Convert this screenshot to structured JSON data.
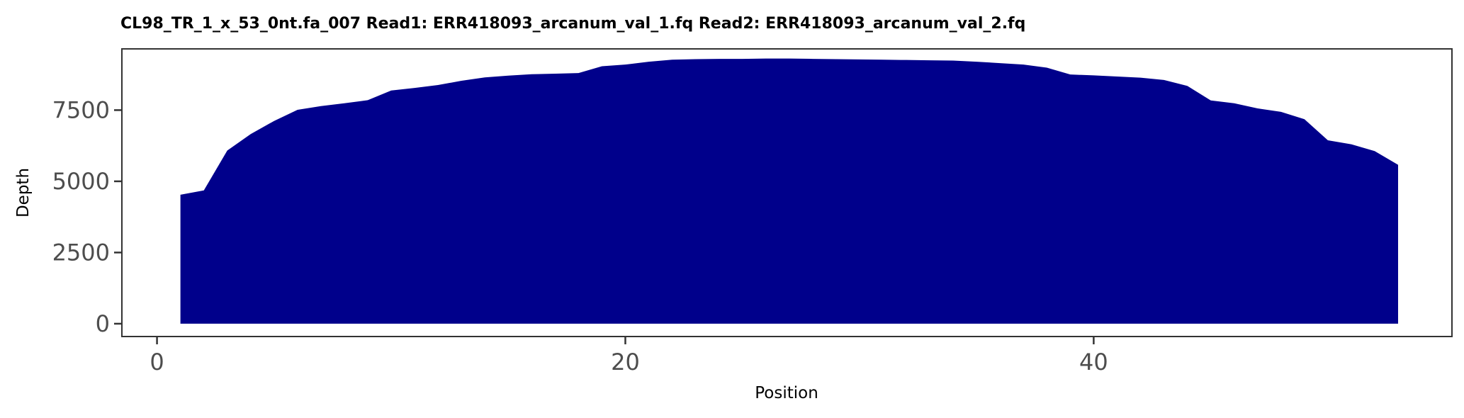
{
  "chart_data": {
    "type": "area",
    "title": "CL98_TR_1_x_53_0nt.fa_007   Read1: ERR418093_arcanum_val_1.fq   Read2: ERR418093_arcanum_val_2.fq",
    "xlabel": "Position",
    "ylabel": "Depth",
    "xlim": [
      -1.5,
      55.3
    ],
    "ylim": [
      -450,
      9650
    ],
    "x_ticks": [
      0,
      20,
      40
    ],
    "x_tick_labels": [
      "0",
      "20",
      "40"
    ],
    "y_ticks": [
      0,
      2500,
      5000,
      7500
    ],
    "y_tick_labels": [
      "0",
      "2500",
      "5000",
      "7500"
    ],
    "grid": false,
    "legend": "none",
    "fill_color": "#00008b",
    "series": [
      {
        "x": [
          1,
          2,
          3,
          4,
          5,
          6,
          7,
          8,
          9,
          10,
          11,
          12,
          13,
          14,
          15,
          16,
          17,
          18,
          19,
          20,
          21,
          22,
          23,
          24,
          25,
          26,
          27,
          28,
          29,
          30,
          31,
          32,
          33,
          34,
          35,
          36,
          37,
          38,
          39,
          40,
          41,
          42,
          43,
          44,
          45,
          46,
          47,
          48,
          49,
          50,
          51,
          52,
          53
        ],
        "values": [
          4530,
          4680,
          6080,
          6660,
          7120,
          7510,
          7640,
          7740,
          7850,
          8190,
          8280,
          8380,
          8530,
          8650,
          8710,
          8760,
          8780,
          8800,
          9040,
          9100,
          9200,
          9270,
          9290,
          9300,
          9300,
          9310,
          9310,
          9300,
          9290,
          9280,
          9270,
          9260,
          9250,
          9240,
          9200,
          9150,
          9100,
          8990,
          8750,
          8720,
          8680,
          8640,
          8560,
          8350,
          7840,
          7740,
          7560,
          7440,
          7180,
          6440,
          6300,
          6060,
          5580
        ]
      }
    ]
  }
}
